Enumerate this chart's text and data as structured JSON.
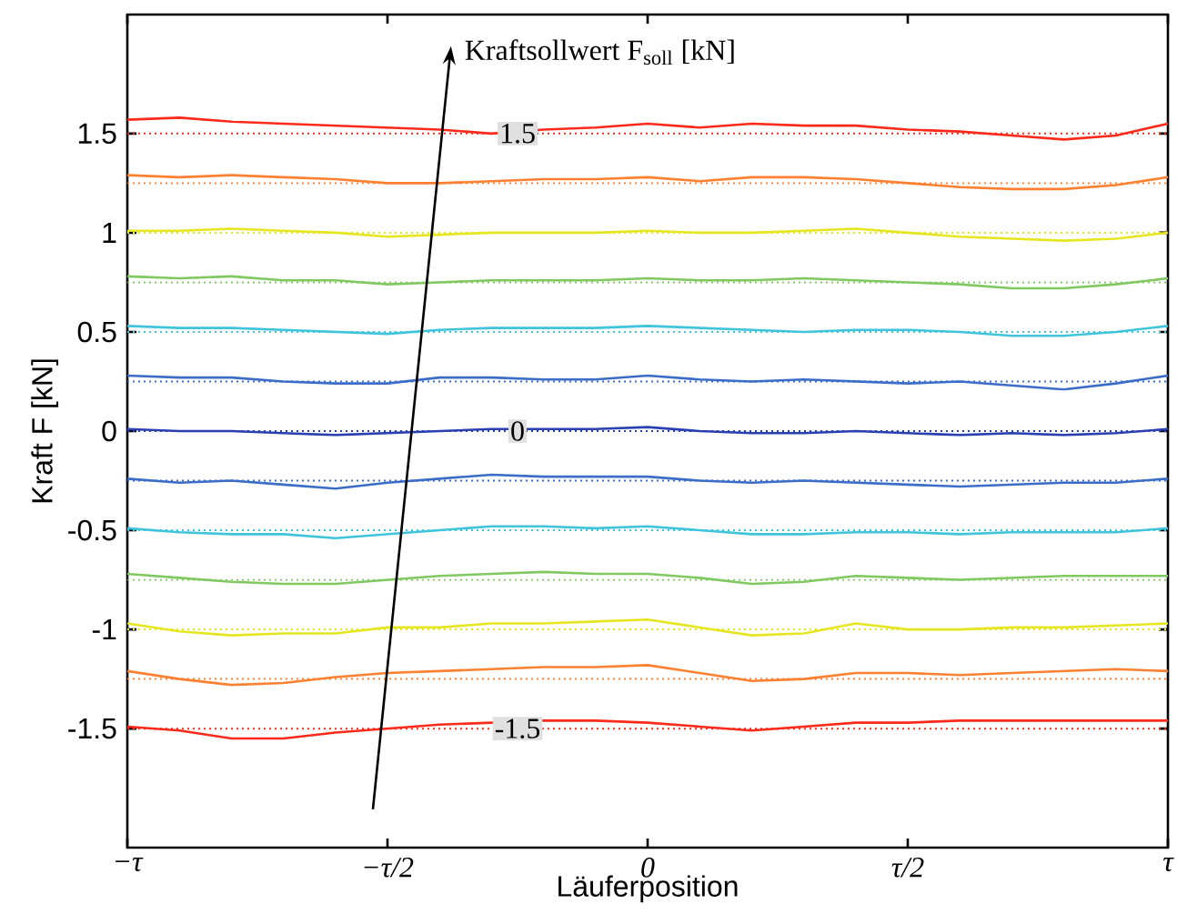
{
  "chart_data": {
    "type": "line",
    "xlabel": "Läuferposition",
    "ylabel": "Kraft F [kN]",
    "ylim": [
      -2.1,
      2.1
    ],
    "yticks": [
      -1.5,
      -1,
      -0.5,
      0,
      0.5,
      1,
      1.5
    ],
    "grid": false,
    "marker": "none",
    "line_style": "solid",
    "categories": [
      "−τ",
      null,
      null,
      null,
      null,
      "−τ/2",
      null,
      null,
      null,
      null,
      "0",
      null,
      null,
      null,
      null,
      "τ/2",
      null,
      null,
      null,
      null,
      "τ"
    ],
    "series": [
      {
        "color": "#ff2a1a",
        "values": [
          1.57,
          1.58,
          1.56,
          1.55,
          1.54,
          1.53,
          1.52,
          1.5,
          1.52,
          1.53,
          1.55,
          1.53,
          1.55,
          1.54,
          1.54,
          1.52,
          1.51,
          1.49,
          1.47,
          1.49,
          1.55
        ]
      },
      {
        "color": "#ff8030",
        "values": [
          1.29,
          1.28,
          1.29,
          1.28,
          1.27,
          1.25,
          1.25,
          1.26,
          1.27,
          1.27,
          1.28,
          1.26,
          1.28,
          1.28,
          1.27,
          1.25,
          1.23,
          1.22,
          1.22,
          1.24,
          1.28
        ]
      },
      {
        "color": "#e6e620",
        "values": [
          1.01,
          1.01,
          1.02,
          1.01,
          1.0,
          0.98,
          0.99,
          1.0,
          1.0,
          1.0,
          1.01,
          1.0,
          1.0,
          1.01,
          1.02,
          1.0,
          0.98,
          0.97,
          0.96,
          0.97,
          1.0
        ]
      },
      {
        "color": "#80c860",
        "values": [
          0.78,
          0.77,
          0.78,
          0.76,
          0.76,
          0.74,
          0.75,
          0.76,
          0.76,
          0.76,
          0.77,
          0.76,
          0.76,
          0.77,
          0.76,
          0.75,
          0.74,
          0.72,
          0.72,
          0.74,
          0.77
        ]
      },
      {
        "color": "#40c4dc",
        "values": [
          0.53,
          0.52,
          0.52,
          0.51,
          0.5,
          0.49,
          0.51,
          0.52,
          0.52,
          0.52,
          0.53,
          0.52,
          0.51,
          0.5,
          0.51,
          0.51,
          0.5,
          0.48,
          0.48,
          0.5,
          0.53
        ]
      },
      {
        "color": "#3a6cc8",
        "values": [
          0.28,
          0.27,
          0.27,
          0.25,
          0.24,
          0.24,
          0.27,
          0.27,
          0.26,
          0.26,
          0.28,
          0.26,
          0.25,
          0.26,
          0.25,
          0.24,
          0.25,
          0.23,
          0.21,
          0.24,
          0.28
        ]
      },
      {
        "color": "#2a40b0",
        "values": [
          0.01,
          0.0,
          0.0,
          -0.01,
          -0.02,
          -0.01,
          0.0,
          0.01,
          0.01,
          0.01,
          0.02,
          0.0,
          -0.01,
          -0.01,
          0.0,
          -0.01,
          -0.02,
          -0.01,
          -0.02,
          -0.01,
          0.01
        ]
      },
      {
        "color": "#3a6cc8",
        "values": [
          -0.24,
          -0.26,
          -0.25,
          -0.27,
          -0.29,
          -0.26,
          -0.24,
          -0.22,
          -0.23,
          -0.23,
          -0.23,
          -0.25,
          -0.26,
          -0.25,
          -0.26,
          -0.27,
          -0.28,
          -0.27,
          -0.26,
          -0.26,
          -0.24
        ]
      },
      {
        "color": "#40c4dc",
        "values": [
          -0.49,
          -0.51,
          -0.52,
          -0.52,
          -0.54,
          -0.52,
          -0.5,
          -0.48,
          -0.48,
          -0.49,
          -0.48,
          -0.5,
          -0.52,
          -0.52,
          -0.51,
          -0.51,
          -0.52,
          -0.51,
          -0.51,
          -0.51,
          -0.49
        ]
      },
      {
        "color": "#80c860",
        "values": [
          -0.72,
          -0.74,
          -0.76,
          -0.77,
          -0.77,
          -0.75,
          -0.73,
          -0.72,
          -0.71,
          -0.72,
          -0.72,
          -0.74,
          -0.77,
          -0.76,
          -0.73,
          -0.74,
          -0.75,
          -0.74,
          -0.73,
          -0.73,
          -0.73
        ]
      },
      {
        "color": "#e6e620",
        "values": [
          -0.97,
          -1.01,
          -1.03,
          -1.02,
          -1.02,
          -0.99,
          -0.99,
          -0.97,
          -0.97,
          -0.96,
          -0.95,
          -0.99,
          -1.03,
          -1.02,
          -0.97,
          -1.0,
          -1.0,
          -0.99,
          -0.99,
          -0.98,
          -0.97
        ]
      },
      {
        "color": "#ff8030",
        "values": [
          -1.21,
          -1.25,
          -1.28,
          -1.27,
          -1.24,
          -1.22,
          -1.21,
          -1.2,
          -1.19,
          -1.19,
          -1.18,
          -1.22,
          -1.26,
          -1.25,
          -1.22,
          -1.22,
          -1.23,
          -1.22,
          -1.21,
          -1.2,
          -1.21
        ]
      },
      {
        "color": "#ff2a1a",
        "values": [
          -1.49,
          -1.51,
          -1.55,
          -1.55,
          -1.52,
          -1.5,
          -1.48,
          -1.47,
          -1.46,
          -1.46,
          -1.47,
          -1.49,
          -1.51,
          -1.49,
          -1.47,
          -1.47,
          -1.46,
          -1.46,
          -1.46,
          -1.46,
          -1.46
        ]
      }
    ],
    "ref_lines": [
      {
        "axis": "y",
        "value": 1.5,
        "color": "#ff2a1a",
        "line_style": "dotted"
      },
      {
        "axis": "y",
        "value": 1.25,
        "color": "#ff8030",
        "line_style": "dotted"
      },
      {
        "axis": "y",
        "value": 1,
        "color": "#e6e620",
        "line_style": "dotted"
      },
      {
        "axis": "y",
        "value": 0.75,
        "color": "#80c860",
        "line_style": "dotted"
      },
      {
        "axis": "y",
        "value": 0.5,
        "color": "#40c4dc",
        "line_style": "dotted"
      },
      {
        "axis": "y",
        "value": 0.25,
        "color": "#3a6cc8",
        "line_style": "dotted"
      },
      {
        "axis": "y",
        "value": 0,
        "color": "#2a40b0",
        "line_style": "dotted"
      },
      {
        "axis": "y",
        "value": -0.25,
        "color": "#3a6cc8",
        "line_style": "dotted"
      },
      {
        "axis": "y",
        "value": -0.5,
        "color": "#40c4dc",
        "line_style": "dotted"
      },
      {
        "axis": "y",
        "value": -0.75,
        "color": "#80c860",
        "line_style": "dotted"
      },
      {
        "axis": "y",
        "value": -1,
        "color": "#e6e620",
        "line_style": "dotted"
      },
      {
        "axis": "y",
        "value": -1.25,
        "color": "#ff8030",
        "line_style": "dotted"
      },
      {
        "axis": "y",
        "value": -1.5,
        "color": "#ff2a1a",
        "line_style": "dotted"
      }
    ],
    "annotations": [
      "Kraftsollwert F$_{soll}$ [kN]",
      {
        "text": "1.5",
        "y": 1.5
      },
      {
        "text": "0",
        "y": 0
      },
      {
        "text": "-1.5",
        "y": -1.5
      }
    ]
  }
}
